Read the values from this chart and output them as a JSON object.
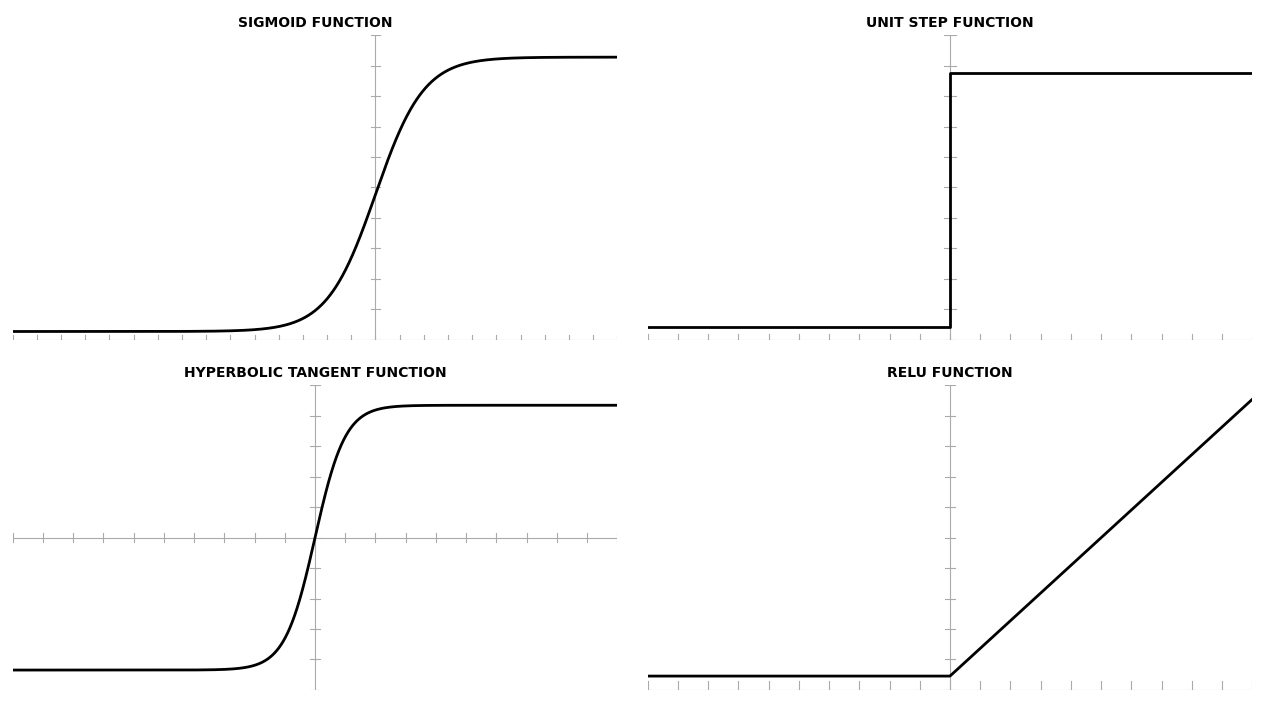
{
  "titles": [
    "SIGMOID FUNCTION",
    "UNIT STEP FUNCTION",
    "HYPERBOLIC TANGENT FUNCTION",
    "RELU FUNCTION"
  ],
  "background_color": "#ffffff",
  "line_color": "#000000",
  "axis_color": "#aaaaaa",
  "title_fontsize": 10,
  "title_fontweight": "bold",
  "line_width": 2.0,
  "sigmoid_xlim": [
    -15,
    10
  ],
  "sigmoid_ylim": [
    -0.03,
    1.08
  ],
  "step_xlim": [
    -10,
    10
  ],
  "step_ylim": [
    -0.05,
    1.15
  ],
  "tanh_xlim": [
    -10,
    10
  ],
  "tanh_ylim": [
    -1.15,
    1.15
  ],
  "relu_xlim": [
    -10,
    10
  ],
  "relu_ylim": [
    -0.5,
    10.5
  ]
}
